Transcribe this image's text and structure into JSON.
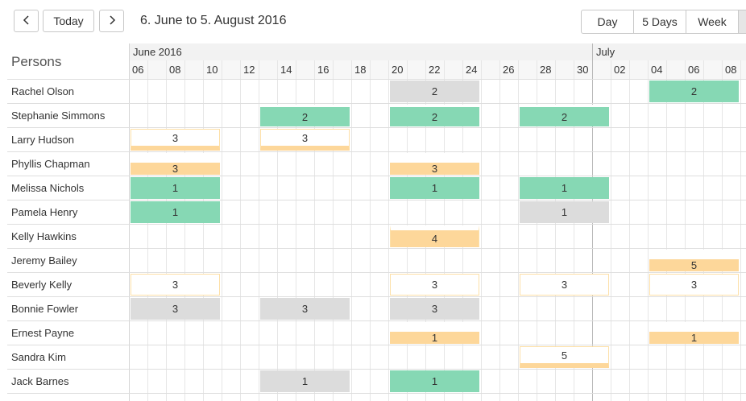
{
  "toolbar": {
    "prev_label": "<",
    "today_label": "Today",
    "next_label": ">",
    "range_title": "6. June to 5. August 2016",
    "views": [
      "Day",
      "5 Days",
      "Week"
    ],
    "active_view": ""
  },
  "grid": {
    "persons_header": "Persons",
    "months": [
      {
        "label": "June 2016",
        "start_day": 0
      },
      {
        "label": "July",
        "start_day": 25
      }
    ],
    "day_labels": [
      "06",
      "08",
      "10",
      "12",
      "14",
      "16",
      "18",
      "20",
      "22",
      "24",
      "26",
      "28",
      "30",
      "02",
      "04",
      "06",
      "08"
    ]
  },
  "persons": [
    {
      "name": "Rachel Olson",
      "bookings": [
        {
          "start": 14,
          "days": 5,
          "value": "2",
          "style": "grey"
        },
        {
          "start": 28,
          "days": 5,
          "value": "2",
          "style": "green"
        }
      ]
    },
    {
      "name": "Stephanie Simmons",
      "bookings": [
        {
          "start": 7,
          "days": 5,
          "value": "2",
          "style": "green-top"
        },
        {
          "start": 14,
          "days": 5,
          "value": "2",
          "style": "green-top"
        },
        {
          "start": 21,
          "days": 5,
          "value": "2",
          "style": "green-top"
        }
      ]
    },
    {
      "name": "Larry Hudson",
      "bookings": [
        {
          "start": 0,
          "days": 5,
          "value": "3",
          "style": "orange-bottom"
        },
        {
          "start": 7,
          "days": 5,
          "value": "3",
          "style": "orange-bottom"
        }
      ]
    },
    {
      "name": "Phyllis Chapman",
      "bookings": [
        {
          "start": 0,
          "days": 5,
          "value": "3",
          "style": "orange-mix"
        },
        {
          "start": 14,
          "days": 5,
          "value": "3",
          "style": "orange-mix"
        }
      ]
    },
    {
      "name": "Melissa Nichols",
      "bookings": [
        {
          "start": 0,
          "days": 5,
          "value": "1",
          "style": "green"
        },
        {
          "start": 14,
          "days": 5,
          "value": "1",
          "style": "green"
        },
        {
          "start": 21,
          "days": 5,
          "value": "1",
          "style": "green"
        }
      ]
    },
    {
      "name": "Pamela Henry",
      "bookings": [
        {
          "start": 0,
          "days": 5,
          "value": "1",
          "style": "green"
        },
        {
          "start": 21,
          "days": 5,
          "value": "1",
          "style": "grey"
        }
      ]
    },
    {
      "name": "Kelly Hawkins",
      "bookings": [
        {
          "start": 14,
          "days": 5,
          "value": "4",
          "style": "orange-full"
        }
      ]
    },
    {
      "name": "Jeremy Bailey",
      "bookings": [
        {
          "start": 28,
          "days": 5,
          "value": "5",
          "style": "orange-mix"
        }
      ]
    },
    {
      "name": "Beverly Kelly",
      "bookings": [
        {
          "start": 0,
          "days": 5,
          "value": "3",
          "style": "outline"
        },
        {
          "start": 14,
          "days": 5,
          "value": "3",
          "style": "outline"
        },
        {
          "start": 21,
          "days": 5,
          "value": "3",
          "style": "outline"
        },
        {
          "start": 28,
          "days": 5,
          "value": "3",
          "style": "outline"
        }
      ]
    },
    {
      "name": "Bonnie Fowler",
      "bookings": [
        {
          "start": 0,
          "days": 5,
          "value": "3",
          "style": "grey"
        },
        {
          "start": 7,
          "days": 5,
          "value": "3",
          "style": "grey"
        },
        {
          "start": 14,
          "days": 5,
          "value": "3",
          "style": "grey"
        }
      ]
    },
    {
      "name": "Ernest Payne",
      "bookings": [
        {
          "start": 14,
          "days": 5,
          "value": "1",
          "style": "orange-mix"
        },
        {
          "start": 28,
          "days": 5,
          "value": "1",
          "style": "orange-mix"
        }
      ]
    },
    {
      "name": "Sandra Kim",
      "bookings": [
        {
          "start": 21,
          "days": 5,
          "value": "5",
          "style": "orange-bottom"
        }
      ]
    },
    {
      "name": "Jack Barnes",
      "bookings": [
        {
          "start": 7,
          "days": 5,
          "value": "1",
          "style": "grey"
        },
        {
          "start": 14,
          "days": 5,
          "value": "1",
          "style": "green"
        }
      ]
    }
  ],
  "colors": {
    "green": "#86d8b4",
    "grey": "#dcdcdc",
    "orange": "#fdd79a",
    "orange_border": "#fde0a8"
  }
}
